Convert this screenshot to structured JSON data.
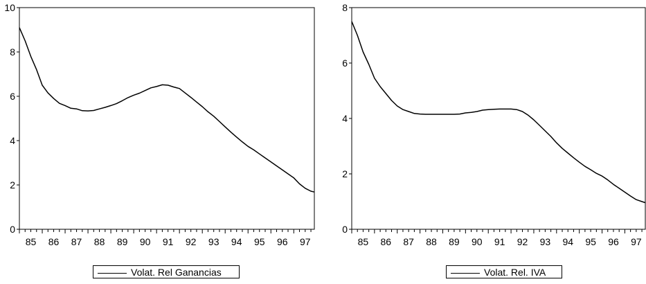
{
  "chart_data": [
    {
      "type": "line",
      "ylim": [
        0,
        10
      ],
      "yticks": [
        "0",
        "2",
        "4",
        "6",
        "8",
        "10"
      ],
      "xlim": [
        1985,
        1997.9
      ],
      "xticks": [
        "85",
        "86",
        "87",
        "88",
        "89",
        "90",
        "91",
        "92",
        "93",
        "94",
        "95",
        "96",
        "97"
      ],
      "legend_position": "bottom",
      "series": [
        {
          "name": "Volat. Rel Ganancias",
          "x": [
            1985.0,
            1985.25,
            1985.5,
            1985.75,
            1986.0,
            1986.25,
            1986.5,
            1986.75,
            1987.0,
            1987.25,
            1987.5,
            1987.75,
            1988.0,
            1988.25,
            1988.5,
            1988.75,
            1989.0,
            1989.25,
            1989.5,
            1989.75,
            1990.0,
            1990.25,
            1990.5,
            1990.75,
            1991.0,
            1991.25,
            1991.5,
            1991.75,
            1992.0,
            1992.25,
            1992.5,
            1992.75,
            1993.0,
            1993.25,
            1993.5,
            1993.75,
            1994.0,
            1994.25,
            1994.5,
            1994.75,
            1995.0,
            1995.25,
            1995.5,
            1995.75,
            1996.0,
            1996.25,
            1996.5,
            1996.75,
            1997.0,
            1997.25,
            1997.5,
            1997.75,
            1997.9
          ],
          "values": [
            9.1,
            8.5,
            7.8,
            7.2,
            6.5,
            6.15,
            5.9,
            5.68,
            5.58,
            5.46,
            5.43,
            5.35,
            5.34,
            5.36,
            5.43,
            5.5,
            5.58,
            5.67,
            5.8,
            5.94,
            6.05,
            6.14,
            6.26,
            6.38,
            6.44,
            6.52,
            6.5,
            6.42,
            6.35,
            6.15,
            5.95,
            5.74,
            5.53,
            5.3,
            5.1,
            4.86,
            4.62,
            4.38,
            4.16,
            3.94,
            3.74,
            3.58,
            3.4,
            3.22,
            3.04,
            2.86,
            2.68,
            2.5,
            2.32,
            2.05,
            1.85,
            1.72,
            1.68
          ]
        }
      ]
    },
    {
      "type": "line",
      "ylim": [
        0,
        8
      ],
      "yticks": [
        "0",
        "2",
        "4",
        "6",
        "8"
      ],
      "xlim": [
        1985,
        1997.9
      ],
      "xticks": [
        "85",
        "86",
        "87",
        "88",
        "89",
        "90",
        "91",
        "92",
        "93",
        "94",
        "95",
        "96",
        "97"
      ],
      "legend_position": "bottom",
      "series": [
        {
          "name": "Volat. Rel. IVA",
          "x": [
            1985.0,
            1985.25,
            1985.5,
            1985.75,
            1986.0,
            1986.25,
            1986.5,
            1986.75,
            1987.0,
            1987.25,
            1987.5,
            1987.75,
            1988.0,
            1988.25,
            1988.5,
            1988.75,
            1989.0,
            1989.25,
            1989.5,
            1989.75,
            1990.0,
            1990.25,
            1990.5,
            1990.75,
            1991.0,
            1991.25,
            1991.5,
            1991.75,
            1992.0,
            1992.25,
            1992.5,
            1992.75,
            1993.0,
            1993.25,
            1993.5,
            1993.75,
            1994.0,
            1994.25,
            1994.5,
            1994.75,
            1995.0,
            1995.25,
            1995.5,
            1995.75,
            1996.0,
            1996.25,
            1996.5,
            1996.75,
            1997.0,
            1997.25,
            1997.5,
            1997.75,
            1997.9
          ],
          "values": [
            7.5,
            7.0,
            6.4,
            5.95,
            5.45,
            5.15,
            4.9,
            4.65,
            4.45,
            4.32,
            4.25,
            4.18,
            4.16,
            4.15,
            4.15,
            4.15,
            4.15,
            4.15,
            4.15,
            4.16,
            4.2,
            4.22,
            4.25,
            4.3,
            4.32,
            4.33,
            4.34,
            4.34,
            4.34,
            4.32,
            4.25,
            4.12,
            3.95,
            3.75,
            3.55,
            3.35,
            3.12,
            2.92,
            2.75,
            2.58,
            2.42,
            2.27,
            2.15,
            2.02,
            1.92,
            1.78,
            1.62,
            1.48,
            1.34,
            1.2,
            1.07,
            1.0,
            0.96
          ]
        }
      ]
    }
  ]
}
